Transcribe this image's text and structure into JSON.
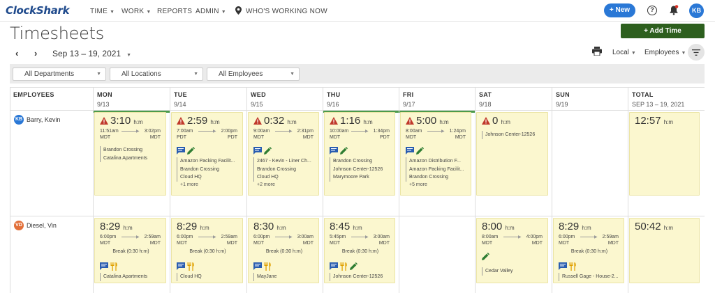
{
  "app": {
    "logo": "ClockShark"
  },
  "nav": {
    "time": "TIME",
    "work": "WORK",
    "reports": "REPORTS",
    "admin": "ADMIN",
    "whos_working": "WHO'S WORKING NOW"
  },
  "header": {
    "new_button": "+ New",
    "user_initials": "KB"
  },
  "page": {
    "title": "Timesheets",
    "add_time": "Add Time",
    "date_range": "Sep 13 – 19, 2021",
    "timezone": "Local",
    "view": "Employees"
  },
  "filters": {
    "departments": "All Departments",
    "locations": "All Locations",
    "employees": "All Employees"
  },
  "columns": {
    "employees": "EMPLOYEES",
    "total_label": "TOTAL",
    "total_range": "SEP 13 – 19, 2021",
    "days": [
      {
        "label": "MON",
        "date": "9/13"
      },
      {
        "label": "TUE",
        "date": "9/14"
      },
      {
        "label": "WED",
        "date": "9/15"
      },
      {
        "label": "THU",
        "date": "9/16"
      },
      {
        "label": "FRI",
        "date": "9/17"
      },
      {
        "label": "SAT",
        "date": "9/18"
      },
      {
        "label": "SUN",
        "date": "9/19"
      }
    ]
  },
  "unit": "h:m",
  "rows": [
    {
      "name": "Barry, Kevin",
      "initials": "KB",
      "avatar_color": "#2a78d6",
      "total": "12:57",
      "days": [
        {
          "total": "3:10",
          "warn": true,
          "start": "11:51am",
          "start_tz": "MDT",
          "end": "3:02pm",
          "end_tz": "MDT",
          "jobs": [
            "Brandon Crossing",
            "Catalina Apartments"
          ]
        },
        {
          "total": "2:59",
          "warn": true,
          "start": "7:00am",
          "start_tz": "PDT",
          "end": "2:00pm",
          "end_tz": "PDT",
          "jobs": [
            "Amazon Packing Facilit...",
            "Brandon Crossing",
            "Cloud HQ"
          ],
          "more": "+1 more"
        },
        {
          "total": "0:32",
          "warn": true,
          "start": "9:00am",
          "start_tz": "MDT",
          "end": "2:31pm",
          "end_tz": "MDT",
          "jobs": [
            "2467 - Kevin - Liner Ch...",
            "Brandon Crossing",
            "Cloud HQ"
          ],
          "more": "+2 more"
        },
        {
          "total": "1:16",
          "warn": true,
          "start": "10:00am",
          "start_tz": "MDT",
          "end": "1:34pm",
          "end_tz": "PDT",
          "jobs": [
            "Brandon Crossing",
            "Johnson Center-12526",
            "Marymoore Park"
          ]
        },
        {
          "total": "5:00",
          "warn": true,
          "start": "8:00am",
          "start_tz": "MDT",
          "end": "1:24pm",
          "end_tz": "MDT",
          "jobs": [
            "Amazon Distribution F...",
            "Amazon Packing Facilit...",
            "Brandon Crossing"
          ],
          "more": "+5 more"
        },
        {
          "total": "0",
          "warn": true,
          "jobs": [
            "Johnson Center-12526"
          ]
        }
      ]
    },
    {
      "name": "Diesel, Vin",
      "initials": "VD",
      "avatar_color": "#e2703a",
      "total": "50:42",
      "days": [
        {
          "total": "8:29",
          "start": "6:00pm",
          "start_tz": "MDT",
          "end": "2:59am",
          "end_tz": "MDT",
          "break": "Break (0:30 h:m)",
          "jobs": [
            "Catalina Apartments"
          ]
        },
        {
          "total": "8:29",
          "start": "6:00pm",
          "start_tz": "MDT",
          "end": "2:59am",
          "end_tz": "MDT",
          "break": "Break (0:30 h:m)",
          "jobs": [
            "Cloud HQ"
          ]
        },
        {
          "total": "8:30",
          "start": "6:00pm",
          "start_tz": "MDT",
          "end": "3:00am",
          "end_tz": "MDT",
          "break": "Break (0:30 h:m)",
          "jobs": [
            "MayJane"
          ]
        },
        {
          "total": "8:45",
          "start": "5:45pm",
          "start_tz": "MDT",
          "end": "3:00am",
          "end_tz": "MDT",
          "break": "Break (0:30 h:m)",
          "jobs": [
            "Johnson Center-12526"
          ]
        },
        {
          "total": "8:00",
          "start": "8:00am",
          "start_tz": "MDT",
          "end": "4:00pm",
          "end_tz": "MDT",
          "jobs": [
            "Cedar Valley"
          ]
        },
        {
          "total": "8:29",
          "start": "6:00pm",
          "start_tz": "MDT",
          "end": "2:59am",
          "end_tz": "MDT",
          "break": "Break (0:30 h:m)",
          "jobs": [
            "Russell Gage - House-2..."
          ]
        }
      ]
    }
  ]
}
